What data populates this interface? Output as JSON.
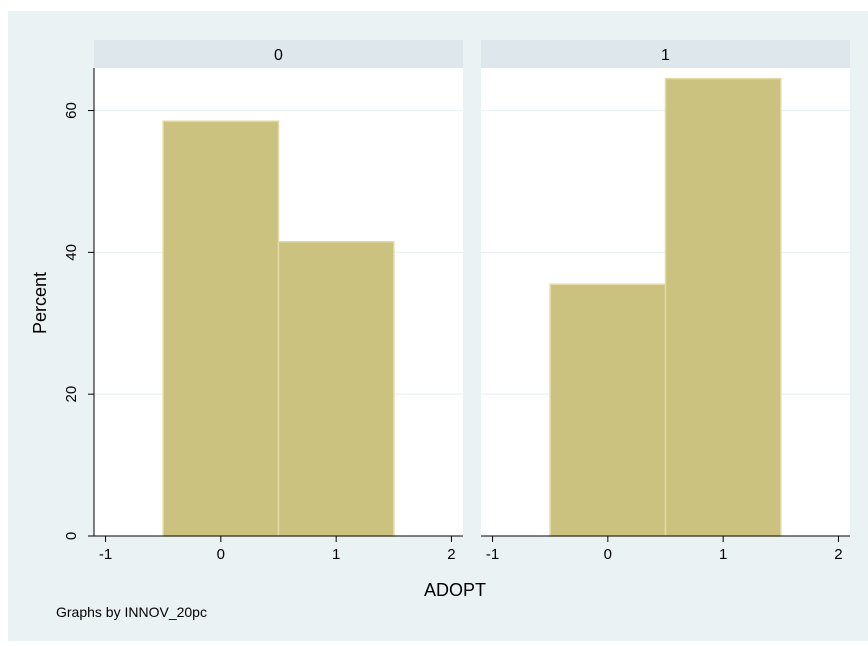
{
  "chart_data": {
    "type": "bar",
    "layout": "faceted-histogram",
    "ylabel": "Percent",
    "xlabel": "ADOPT",
    "note": "Graphs by INNOV_20pc",
    "xlim": [
      -1.1,
      2.1
    ],
    "ylim": [
      0,
      66
    ],
    "xticks": [
      -1,
      0,
      1,
      2
    ],
    "yticks": [
      0,
      20,
      40,
      60
    ],
    "bin_width": 1,
    "grid": true,
    "colors": {
      "bar_fill": "#ccc27f",
      "bar_stroke": "#e2d9a6",
      "outer_background": "#eaf2f3",
      "plot_background": "#ffffff",
      "facet_header": "#dde7ec",
      "gridline": "#eaf2f3"
    },
    "panels": [
      {
        "label": "0",
        "x": [
          0,
          1
        ],
        "values": [
          58.5,
          41.5
        ]
      },
      {
        "label": "1",
        "x": [
          0,
          1
        ],
        "values": [
          35.5,
          64.5
        ]
      }
    ]
  }
}
